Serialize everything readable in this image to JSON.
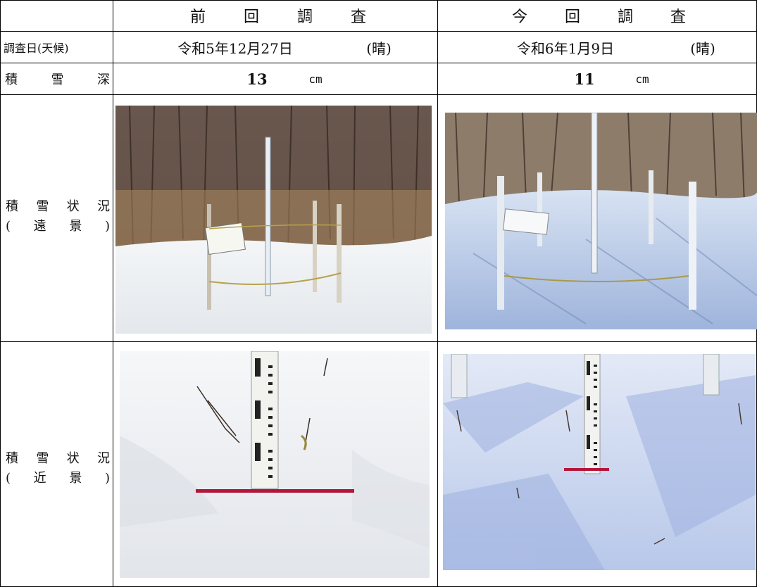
{
  "header": {
    "previous": [
      "前",
      "回",
      "調",
      "査"
    ],
    "current": [
      "今",
      "回",
      "調",
      "査"
    ]
  },
  "rows": {
    "date_label": "調査日(天候)",
    "previous_date": "令和5年12月27日",
    "previous_weather": "(晴)",
    "current_date": "令和6年1月9日",
    "current_weather": "(晴)",
    "depth_label": [
      "積",
      "雪",
      "深"
    ],
    "previous_depth": "13",
    "current_depth": "11",
    "depth_unit": "cm",
    "far_label_line1": [
      "積",
      "雪",
      "状",
      "況"
    ],
    "far_label_line2": [
      "(",
      "遠",
      "景",
      ")"
    ],
    "near_label_line1": [
      "積",
      "雪",
      "状",
      "況"
    ],
    "near_label_line2": [
      "(",
      "近",
      "景",
      ")"
    ]
  }
}
